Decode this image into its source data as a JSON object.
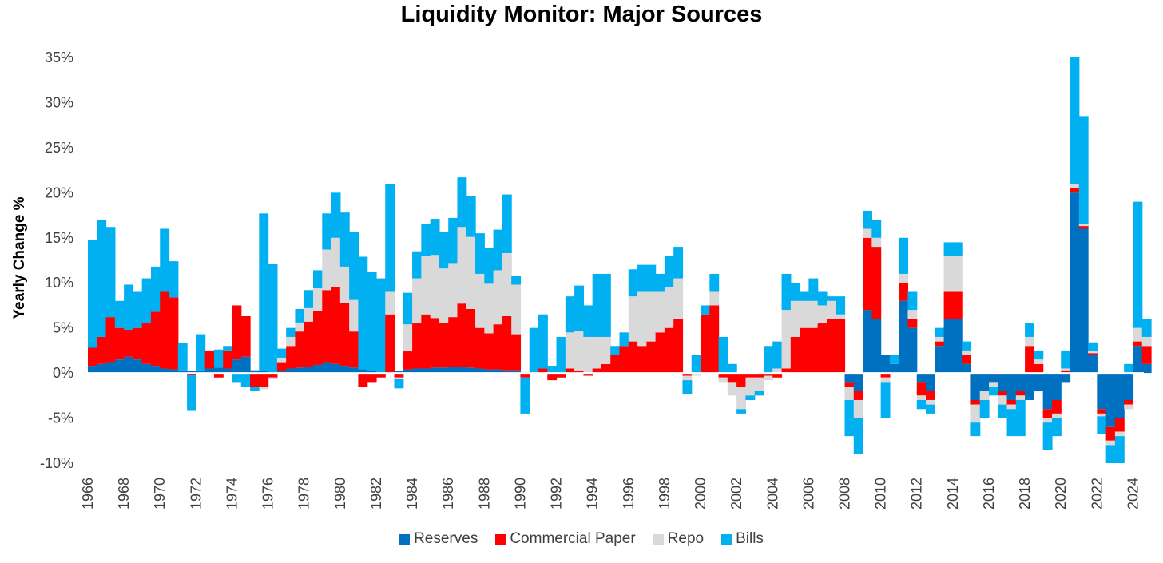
{
  "chart_data": {
    "type": "area",
    "title": "Liquidity Monitor: Major Sources",
    "xlabel": "",
    "ylabel": "Yearly Change %",
    "ylim": [
      -10,
      35
    ],
    "yticks": [
      -10,
      -5,
      0,
      5,
      10,
      15,
      20,
      25,
      30,
      35
    ],
    "ytick_labels": [
      "-10%",
      "-5%",
      "0%",
      "5%",
      "10%",
      "15%",
      "20%",
      "25%",
      "30%",
      "35%"
    ],
    "xlim": [
      1966,
      2024.6
    ],
    "xtick_labels": [
      "1966",
      "1968",
      "1970",
      "1972",
      "1974",
      "1976",
      "1978",
      "1980",
      "1982",
      "1984",
      "1986",
      "1988",
      "1990",
      "1992",
      "1994",
      "1996",
      "1998",
      "2000",
      "2002",
      "2004",
      "2006",
      "2008",
      "2010",
      "2012",
      "2014",
      "2016",
      "2018",
      "2020",
      "2022",
      "2024"
    ],
    "legend_position": "bottom",
    "stacking": "stacked (positive and negative stacked separately)",
    "x": [
      1966.0,
      1966.5,
      1967.0,
      1967.5,
      1968.0,
      1968.5,
      1969.0,
      1969.5,
      1970.0,
      1970.5,
      1971.0,
      1971.5,
      1972.0,
      1972.5,
      1973.0,
      1973.5,
      1974.0,
      1974.5,
      1975.0,
      1975.5,
      1976.0,
      1976.5,
      1977.0,
      1977.5,
      1978.0,
      1978.5,
      1979.0,
      1979.5,
      1980.0,
      1980.5,
      1981.0,
      1981.5,
      1982.0,
      1982.5,
      1983.0,
      1983.5,
      1984.0,
      1984.5,
      1985.0,
      1985.5,
      1986.0,
      1986.5,
      1987.0,
      1987.5,
      1988.0,
      1988.5,
      1989.0,
      1989.5,
      1990.0,
      1990.5,
      1991.0,
      1991.5,
      1992.0,
      1992.5,
      1993.0,
      1993.5,
      1994.0,
      1994.5,
      1995.0,
      1995.5,
      1996.0,
      1996.5,
      1997.0,
      1997.5,
      1998.0,
      1998.5,
      1999.0,
      1999.5,
      2000.0,
      2000.5,
      2001.0,
      2001.5,
      2002.0,
      2002.5,
      2003.0,
      2003.5,
      2004.0,
      2004.5,
      2005.0,
      2005.5,
      2006.0,
      2006.5,
      2007.0,
      2007.5,
      2008.0,
      2008.5,
      2009.0,
      2009.5,
      2010.0,
      2010.5,
      2011.0,
      2011.5,
      2012.0,
      2012.5,
      2013.0,
      2013.5,
      2014.0,
      2014.5,
      2015.0,
      2015.5,
      2016.0,
      2016.5,
      2017.0,
      2017.5,
      2018.0,
      2018.5,
      2019.0,
      2019.5,
      2020.0,
      2020.5,
      2021.0,
      2021.5,
      2022.0,
      2022.5,
      2023.0,
      2023.5,
      2024.0,
      2024.5
    ],
    "series": [
      {
        "name": "Reserves",
        "color": "#0070C0",
        "values": [
          0.8,
          1.0,
          1.2,
          1.5,
          1.8,
          1.5,
          1.0,
          0.8,
          0.5,
          0.4,
          0.3,
          0.2,
          0.3,
          0.5,
          0.6,
          0.5,
          1.5,
          1.8,
          0.3,
          0.2,
          0.1,
          0.2,
          0.5,
          0.6,
          0.7,
          0.9,
          1.2,
          1.0,
          0.8,
          0.6,
          0.4,
          0.2,
          0.0,
          0.0,
          0.2,
          0.4,
          0.5,
          0.5,
          0.6,
          0.6,
          0.7,
          0.7,
          0.6,
          0.5,
          0.4,
          0.4,
          0.3,
          0.3,
          0.1,
          0.0,
          0.0,
          0.0,
          0.0,
          0.0,
          0.0,
          0.0,
          0.0,
          0.0,
          0.0,
          0.0,
          0.0,
          0.0,
          0.0,
          0.0,
          0.0,
          0.0,
          0.0,
          0.0,
          0.0,
          0.0,
          0.0,
          0.0,
          0.0,
          0.0,
          0.0,
          0.0,
          0.0,
          0.0,
          0.0,
          0.0,
          0.0,
          0.0,
          0.0,
          0.0,
          -1.0,
          -2.0,
          7.0,
          6.0,
          2.0,
          1.0,
          8.0,
          5.0,
          -1.0,
          -2.0,
          3.0,
          6.0,
          6.0,
          1.0,
          -3.0,
          -2.0,
          -1.0,
          -2.0,
          -3.0,
          -2.0,
          -3.0,
          -2.0,
          -4.0,
          -3.0,
          -1.0,
          20.0,
          16.0,
          2.0,
          -4.0,
          -6.0,
          -5.0,
          -3.0,
          3.0,
          1.0
        ]
      },
      {
        "name": "Commercial Paper",
        "color": "#FF0000",
        "values": [
          2.0,
          3.0,
          5.0,
          3.5,
          3.0,
          3.5,
          4.5,
          6.0,
          8.5,
          8.0,
          0.0,
          -0.2,
          0.0,
          2.0,
          -0.5,
          2.0,
          6.0,
          4.5,
          -1.5,
          -1.5,
          -0.5,
          1.0,
          2.5,
          4.0,
          5.0,
          6.0,
          8.0,
          8.5,
          7.0,
          4.0,
          -1.5,
          -1.0,
          -0.5,
          6.5,
          -0.5,
          2.0,
          5.0,
          6.0,
          5.5,
          5.0,
          5.5,
          7.0,
          6.5,
          4.5,
          4.0,
          5.0,
          6.0,
          4.0,
          -0.5,
          0.0,
          0.5,
          -0.8,
          -0.5,
          0.5,
          0.2,
          -0.3,
          0.5,
          1.0,
          2.0,
          3.0,
          3.5,
          3.0,
          3.5,
          4.5,
          5.0,
          6.0,
          -0.3,
          0.0,
          6.5,
          7.5,
          -0.5,
          -1.0,
          -1.5,
          -0.5,
          -0.5,
          -0.3,
          -0.5,
          0.5,
          4.0,
          5.0,
          5.0,
          5.5,
          6.0,
          6.0,
          -0.5,
          -1.0,
          8.0,
          8.0,
          -0.5,
          0.0,
          2.0,
          1.0,
          -1.5,
          -1.0,
          0.5,
          3.0,
          3.0,
          1.0,
          -0.5,
          0.0,
          0.0,
          -0.5,
          -0.5,
          -0.5,
          3.0,
          1.0,
          -1.0,
          -1.5,
          0.3,
          0.5,
          0.3,
          0.2,
          -0.5,
          -1.5,
          -1.5,
          -0.5,
          0.5,
          2.0
        ]
      },
      {
        "name": "Repo",
        "color": "#D9D9D9",
        "values": [
          0.0,
          0.0,
          0.0,
          0.0,
          0.0,
          0.0,
          0.0,
          0.0,
          0.0,
          0.0,
          0.0,
          0.0,
          0.0,
          0.0,
          0.0,
          0.0,
          0.0,
          0.0,
          0.0,
          -0.3,
          -0.2,
          0.5,
          1.0,
          1.0,
          1.5,
          2.5,
          4.5,
          5.5,
          4.0,
          3.5,
          0.0,
          0.0,
          0.0,
          2.5,
          -0.2,
          3.0,
          5.0,
          6.5,
          7.0,
          6.0,
          6.0,
          8.5,
          8.0,
          6.0,
          5.5,
          6.0,
          7.0,
          5.5,
          0.0,
          0.0,
          0.0,
          0.0,
          0.0,
          4.0,
          4.5,
          4.0,
          3.5,
          3.0,
          0.0,
          0.0,
          5.0,
          6.0,
          5.5,
          4.5,
          4.5,
          4.5,
          -0.5,
          -0.3,
          0.0,
          1.5,
          -0.5,
          -1.5,
          -2.5,
          -2.0,
          -1.5,
          -0.5,
          0.5,
          6.5,
          4.0,
          3.0,
          3.0,
          2.0,
          2.0,
          0.5,
          -1.5,
          -2.0,
          1.0,
          1.0,
          -0.5,
          0.0,
          1.0,
          1.0,
          -0.5,
          -0.5,
          0.5,
          4.0,
          4.0,
          0.5,
          -2.0,
          -1.0,
          -0.5,
          -1.0,
          -0.5,
          -0.5,
          1.0,
          0.5,
          -0.5,
          -0.5,
          0.2,
          0.5,
          0.2,
          0.2,
          -0.3,
          -0.5,
          -0.5,
          -0.5,
          1.5,
          1.0
        ]
      },
      {
        "name": "Bills",
        "color": "#00B0F0",
        "values": [
          12.0,
          13.0,
          10.0,
          3.0,
          5.0,
          4.0,
          5.0,
          5.0,
          7.0,
          4.0,
          3.0,
          -4.0,
          4.0,
          0.0,
          2.0,
          0.5,
          -1.0,
          -1.5,
          -0.5,
          17.5,
          12.0,
          1.0,
          1.0,
          1.5,
          2.0,
          2.0,
          4.0,
          5.0,
          6.0,
          7.5,
          12.5,
          11.0,
          10.5,
          12.0,
          -1.0,
          3.5,
          3.0,
          3.5,
          4.0,
          4.0,
          5.0,
          5.5,
          4.5,
          4.5,
          4.0,
          4.5,
          6.5,
          1.0,
          -4.0,
          5.0,
          6.0,
          0.8,
          4.0,
          4.0,
          5.0,
          3.5,
          7.0,
          7.0,
          1.0,
          1.5,
          3.0,
          3.0,
          3.0,
          2.0,
          3.5,
          3.5,
          -1.5,
          2.0,
          1.0,
          2.0,
          4.0,
          1.0,
          -0.5,
          -0.5,
          -0.5,
          3.0,
          3.0,
          4.0,
          2.0,
          1.0,
          2.5,
          1.5,
          0.5,
          2.0,
          -4.0,
          -4.0,
          2.0,
          2.0,
          -4.0,
          1.0,
          4.0,
          2.0,
          -1.0,
          -1.0,
          1.0,
          1.5,
          1.5,
          1.0,
          -1.5,
          -2.0,
          -1.0,
          -1.5,
          -3.0,
          -4.0,
          1.5,
          1.0,
          -3.0,
          -2.0,
          2.0,
          14.5,
          12.0,
          1.0,
          -2.0,
          -2.0,
          -3.0,
          1.0,
          14.0,
          2.0
        ]
      }
    ]
  }
}
